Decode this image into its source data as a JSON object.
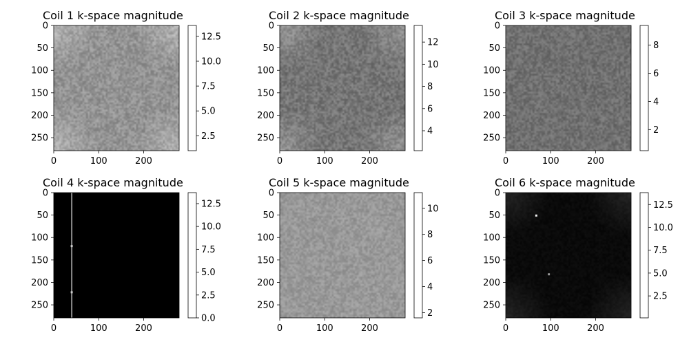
{
  "figure": {
    "background": "#ffffff",
    "colormap": "gray"
  },
  "chart_data": [
    {
      "type": "heatmap",
      "title": "Coil 1 k-space magnitude",
      "xlim": [
        0,
        279
      ],
      "ylim": [
        279,
        0
      ],
      "xticks": [
        0,
        100,
        200
      ],
      "yticks": [
        0,
        50,
        100,
        150,
        200,
        250
      ],
      "colorbar": {
        "min": 1.0,
        "max": 13.6,
        "ticks": [
          2.5,
          5.0,
          7.5,
          10.0,
          12.5
        ],
        "tick_labels": [
          "2.5",
          "5.0",
          "7.5",
          "10.0",
          "12.5"
        ]
      },
      "appearance": {
        "pattern": "noise",
        "base_gray": 0.58,
        "spread": 0.09,
        "corner_glow": 0.12
      }
    },
    {
      "type": "heatmap",
      "title": "Coil 2 k-space magnitude",
      "xlim": [
        0,
        279
      ],
      "ylim": [
        279,
        0
      ],
      "xticks": [
        0,
        100,
        200
      ],
      "yticks": [
        0,
        50,
        100,
        150,
        200,
        250
      ],
      "colorbar": {
        "min": 2.2,
        "max": 13.5,
        "ticks": [
          4,
          6,
          8,
          10,
          12
        ],
        "tick_labels": [
          "4",
          "6",
          "8",
          "10",
          "12"
        ]
      },
      "appearance": {
        "pattern": "noise",
        "base_gray": 0.46,
        "spread": 0.09,
        "corner_glow": 0.12
      }
    },
    {
      "type": "heatmap",
      "title": "Coil 3 k-space magnitude",
      "xlim": [
        0,
        279
      ],
      "ylim": [
        279,
        0
      ],
      "xticks": [
        0,
        100,
        200
      ],
      "yticks": [
        0,
        50,
        100,
        150,
        200,
        250
      ],
      "colorbar": {
        "min": 0.5,
        "max": 9.4,
        "ticks": [
          2,
          4,
          6,
          8
        ],
        "tick_labels": [
          "2",
          "4",
          "6",
          "8"
        ]
      },
      "appearance": {
        "pattern": "noise",
        "base_gray": 0.44,
        "spread": 0.08,
        "corner_glow": 0.0
      }
    },
    {
      "type": "heatmap",
      "title": "Coil 4 k-space magnitude",
      "xlim": [
        0,
        279
      ],
      "ylim": [
        279,
        0
      ],
      "xticks": [
        0,
        100,
        200
      ],
      "yticks": [
        0,
        50,
        100,
        150,
        200,
        250
      ],
      "colorbar": {
        "min": 0.0,
        "max": 13.7,
        "ticks": [
          0.0,
          2.5,
          5.0,
          7.5,
          10.0,
          12.5
        ],
        "tick_labels": [
          "0.0",
          "2.5",
          "5.0",
          "7.5",
          "10.0",
          "12.5"
        ]
      },
      "appearance": {
        "pattern": "dark",
        "base_gray": 0.0,
        "vertical_lines": [
          {
            "x": 40,
            "gray": 0.55
          }
        ],
        "bright_spots": [
          {
            "x": 40,
            "y": 119,
            "gray": 0.8
          },
          {
            "x": 40,
            "y": 222,
            "gray": 0.8
          }
        ]
      }
    },
    {
      "type": "heatmap",
      "title": "Coil 5 k-space magnitude",
      "xlim": [
        0,
        279
      ],
      "ylim": [
        279,
        0
      ],
      "xticks": [
        0,
        100,
        200
      ],
      "yticks": [
        0,
        50,
        100,
        150,
        200,
        250
      ],
      "colorbar": {
        "min": 1.6,
        "max": 11.2,
        "ticks": [
          2,
          4,
          6,
          8,
          10
        ],
        "tick_labels": [
          "2",
          "4",
          "6",
          "8",
          "10"
        ]
      },
      "appearance": {
        "pattern": "noise",
        "base_gray": 0.6,
        "spread": 0.07,
        "corner_glow": 0.0
      }
    },
    {
      "type": "heatmap",
      "title": "Coil 6 k-space magnitude",
      "xlim": [
        0,
        279
      ],
      "ylim": [
        279,
        0
      ],
      "xticks": [
        0,
        100,
        200
      ],
      "yticks": [
        0,
        50,
        100,
        150,
        200,
        250
      ],
      "colorbar": {
        "min": 0.1,
        "max": 13.8,
        "ticks": [
          2.5,
          5.0,
          7.5,
          10.0,
          12.5
        ],
        "tick_labels": [
          "2.5",
          "5.0",
          "7.5",
          "10.0",
          "12.5"
        ]
      },
      "appearance": {
        "pattern": "dark",
        "base_gray": 0.04,
        "spread": 0.02,
        "corner_glow": 0.1,
        "bright_spots": [
          {
            "x": 68,
            "y": 51,
            "gray": 0.95
          },
          {
            "x": 96,
            "y": 182,
            "gray": 0.6
          }
        ]
      }
    }
  ]
}
